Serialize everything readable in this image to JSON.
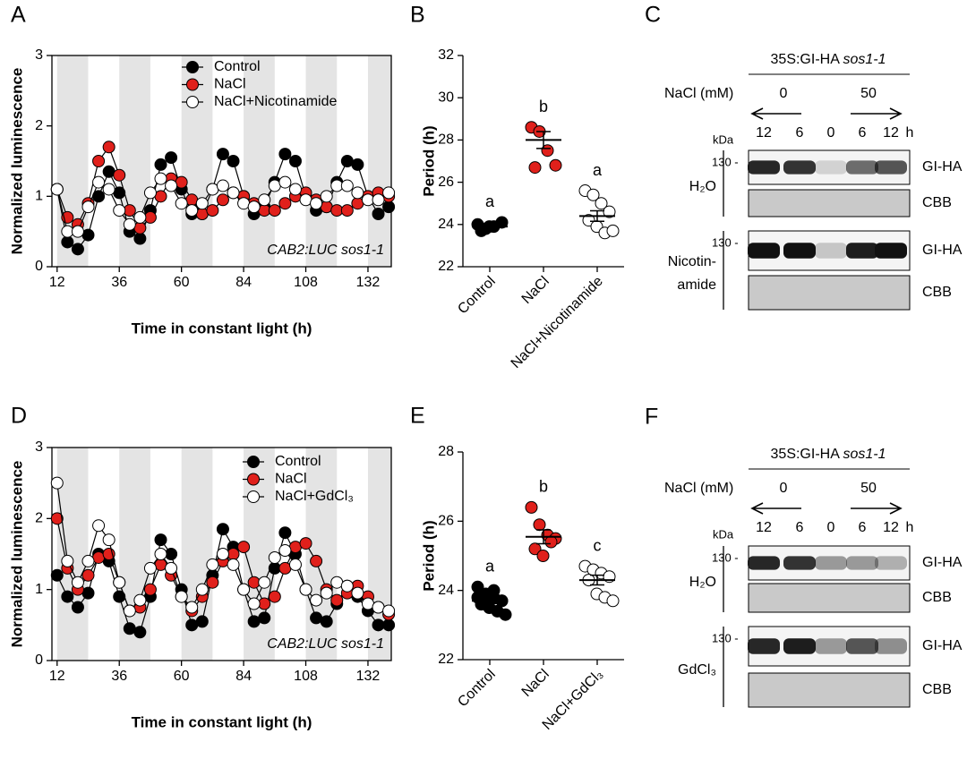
{
  "chart_data": [
    {
      "type": "line",
      "panel": "A",
      "ylabel": "Normalized luminescence",
      "xlabel": "Time in constant light (h)",
      "annotation": "CAB2:LUC sos1-1",
      "xlim": [
        10,
        141
      ],
      "xticks": [
        12,
        36,
        60,
        84,
        108,
        132
      ],
      "ylim": [
        0,
        3
      ],
      "yticks": [
        0,
        1,
        2,
        3
      ],
      "legend": "upper center",
      "shaded": [
        [
          12,
          24
        ],
        [
          36,
          48
        ],
        [
          60,
          72
        ],
        [
          84,
          96
        ],
        [
          108,
          120
        ],
        [
          132,
          141
        ]
      ],
      "x": [
        12,
        16,
        20,
        24,
        28,
        32,
        36,
        40,
        44,
        48,
        52,
        56,
        60,
        64,
        68,
        72,
        76,
        80,
        84,
        88,
        92,
        96,
        100,
        104,
        108,
        112,
        116,
        120,
        124,
        128,
        132,
        136,
        140
      ],
      "series": [
        {
          "name": "Control",
          "color": "#000000",
          "values": [
            1.1,
            0.35,
            0.25,
            0.45,
            1.0,
            1.35,
            1.05,
            0.5,
            0.4,
            0.8,
            1.45,
            1.55,
            1.1,
            0.75,
            0.75,
            1.1,
            1.6,
            1.5,
            1.0,
            0.75,
            0.85,
            1.2,
            1.6,
            1.5,
            1.0,
            0.8,
            0.85,
            1.2,
            1.5,
            1.45,
            1.0,
            0.75,
            0.85
          ]
        },
        {
          "name": "NaCl",
          "color": "#e0201b",
          "values": [
            1.1,
            0.7,
            0.6,
            0.9,
            1.5,
            1.7,
            1.3,
            0.8,
            0.55,
            0.7,
            1.0,
            1.25,
            1.2,
            0.95,
            0.75,
            0.8,
            0.95,
            1.05,
            1.0,
            0.9,
            0.8,
            0.8,
            0.9,
            1.0,
            1.05,
            0.95,
            0.85,
            0.8,
            0.8,
            0.9,
            1.0,
            1.05,
            1.0
          ]
        },
        {
          "name": "NaCl+Nicotinamide",
          "color": "#ffffff",
          "values": [
            1.1,
            0.5,
            0.5,
            0.85,
            1.2,
            1.1,
            0.8,
            0.6,
            0.7,
            1.05,
            1.25,
            1.15,
            0.9,
            0.8,
            0.9,
            1.1,
            1.15,
            1.05,
            0.9,
            0.85,
            0.95,
            1.15,
            1.2,
            1.1,
            0.95,
            0.9,
            1.0,
            1.15,
            1.15,
            1.05,
            0.95,
            0.95,
            1.05
          ]
        }
      ]
    },
    {
      "type": "strip",
      "panel": "B",
      "ylabel": "Period (h)",
      "ylim": [
        22,
        32
      ],
      "yticks": [
        22,
        24,
        26,
        28,
        30,
        32
      ],
      "categories": [
        "Control",
        "NaCl",
        "NaCl+Nicotinamide"
      ],
      "colors": [
        "#000000",
        "#e0201b",
        "#ffffff"
      ],
      "points": [
        [
          24.0,
          23.8,
          23.9,
          24.1,
          23.7,
          23.9
        ],
        [
          28.6,
          28.4,
          27.5,
          26.8,
          26.7
        ],
        [
          25.6,
          25.4,
          25.0,
          24.6,
          24.2,
          23.9,
          23.6,
          23.7
        ]
      ],
      "means": [
        23.9,
        28.0,
        24.4
      ],
      "sems": [
        0.1,
        0.4,
        0.25
      ],
      "letters": [
        "a",
        "b",
        "a"
      ]
    },
    {
      "type": "line",
      "panel": "D",
      "ylabel": "Normalized luminescence",
      "xlabel": "Time in constant light (h)",
      "annotation": "CAB2:LUC sos1-1",
      "xlim": [
        10,
        141
      ],
      "xticks": [
        12,
        36,
        60,
        84,
        108,
        132
      ],
      "ylim": [
        0,
        3
      ],
      "yticks": [
        0,
        1,
        2,
        3
      ],
      "legend": "upper right",
      "shaded": [
        [
          12,
          24
        ],
        [
          36,
          48
        ],
        [
          60,
          72
        ],
        [
          84,
          96
        ],
        [
          108,
          120
        ],
        [
          132,
          141
        ]
      ],
      "x": [
        12,
        16,
        20,
        24,
        28,
        32,
        36,
        40,
        44,
        48,
        52,
        56,
        60,
        64,
        68,
        72,
        76,
        80,
        84,
        88,
        92,
        96,
        100,
        104,
        108,
        112,
        116,
        120,
        124,
        128,
        132,
        136,
        140
      ],
      "series": [
        {
          "name": "Control",
          "color": "#000000",
          "values": [
            1.2,
            0.9,
            0.75,
            0.95,
            1.5,
            1.4,
            0.9,
            0.45,
            0.4,
            0.9,
            1.7,
            1.5,
            1.0,
            0.5,
            0.55,
            1.2,
            1.85,
            1.6,
            1.0,
            0.55,
            0.6,
            1.3,
            1.8,
            1.5,
            1.0,
            0.6,
            0.55,
            0.8,
            1.05,
            0.9,
            0.7,
            0.5,
            0.5
          ]
        },
        {
          "name": "NaCl",
          "color": "#e0201b",
          "values": [
            2.0,
            1.3,
            1.0,
            1.2,
            1.45,
            1.5,
            1.1,
            0.7,
            0.75,
            1.0,
            1.35,
            1.2,
            0.9,
            0.7,
            0.9,
            1.1,
            1.4,
            1.5,
            1.6,
            1.1,
            0.8,
            0.9,
            1.3,
            1.6,
            1.65,
            1.4,
            1.0,
            0.85,
            0.95,
            1.05,
            0.9,
            0.75,
            0.65
          ]
        },
        {
          "name": "NaCl+GdCl₃",
          "color": "#ffffff",
          "values": [
            2.5,
            1.4,
            1.1,
            1.4,
            1.9,
            1.7,
            1.1,
            0.7,
            0.85,
            1.3,
            1.5,
            1.3,
            0.9,
            0.75,
            1.0,
            1.35,
            1.5,
            1.35,
            1.0,
            0.8,
            1.1,
            1.45,
            1.55,
            1.35,
            1.0,
            0.85,
            0.95,
            1.1,
            1.05,
            0.95,
            0.8,
            0.75,
            0.7
          ]
        }
      ]
    },
    {
      "type": "strip",
      "panel": "E",
      "ylabel": "Period (h)",
      "ylim": [
        22,
        28
      ],
      "yticks": [
        22,
        24,
        26,
        28
      ],
      "categories": [
        "Control",
        "NaCl",
        "NaCl+GdCl₃"
      ],
      "colors": [
        "#000000",
        "#e0201b",
        "#ffffff"
      ],
      "points": [
        [
          24.1,
          23.9,
          23.8,
          23.7,
          23.6,
          23.5,
          23.4,
          23.3,
          23.8,
          23.6,
          24.0,
          23.7
        ],
        [
          26.4,
          25.9,
          25.6,
          25.5,
          25.2,
          25.0,
          25.4
        ],
        [
          24.7,
          24.6,
          24.5,
          24.4,
          24.3,
          23.9,
          23.8,
          23.7
        ]
      ],
      "means": [
        23.7,
        25.55,
        24.3
      ],
      "sems": [
        0.08,
        0.2,
        0.14
      ],
      "letters": [
        "a",
        "b",
        "c"
      ]
    }
  ],
  "blots": [
    {
      "panel": "C",
      "construct": "35S:GI-HA",
      "genotype": "sos1-1",
      "treatment": "NaCl (mM)",
      "doses": [
        "0",
        "50"
      ],
      "times": [
        "12",
        "6",
        "0",
        "6",
        "12"
      ],
      "time_unit": "h",
      "kda": "kDa",
      "rows": [
        {
          "condition": [
            "H₂O"
          ],
          "marker": "130 -",
          "protein": "GI-HA",
          "loading": "CBB"
        },
        {
          "condition": [
            "Nicotin-",
            "amide"
          ],
          "marker": "130 -",
          "protein": "GI-HA",
          "loading": "CBB"
        }
      ]
    },
    {
      "panel": "F",
      "construct": "35S:GI-HA",
      "genotype": "sos1-1",
      "treatment": "NaCl (mM)",
      "doses": [
        "0",
        "50"
      ],
      "times": [
        "12",
        "6",
        "0",
        "6",
        "12"
      ],
      "time_unit": "h",
      "kda": "kDa",
      "rows": [
        {
          "condition": [
            "H₂O"
          ],
          "marker": "130 -",
          "protein": "GI-HA",
          "loading": "CBB"
        },
        {
          "condition": [
            "GdCl₃"
          ],
          "marker": "130 -",
          "protein": "GI-HA",
          "loading": "CBB"
        }
      ]
    }
  ]
}
